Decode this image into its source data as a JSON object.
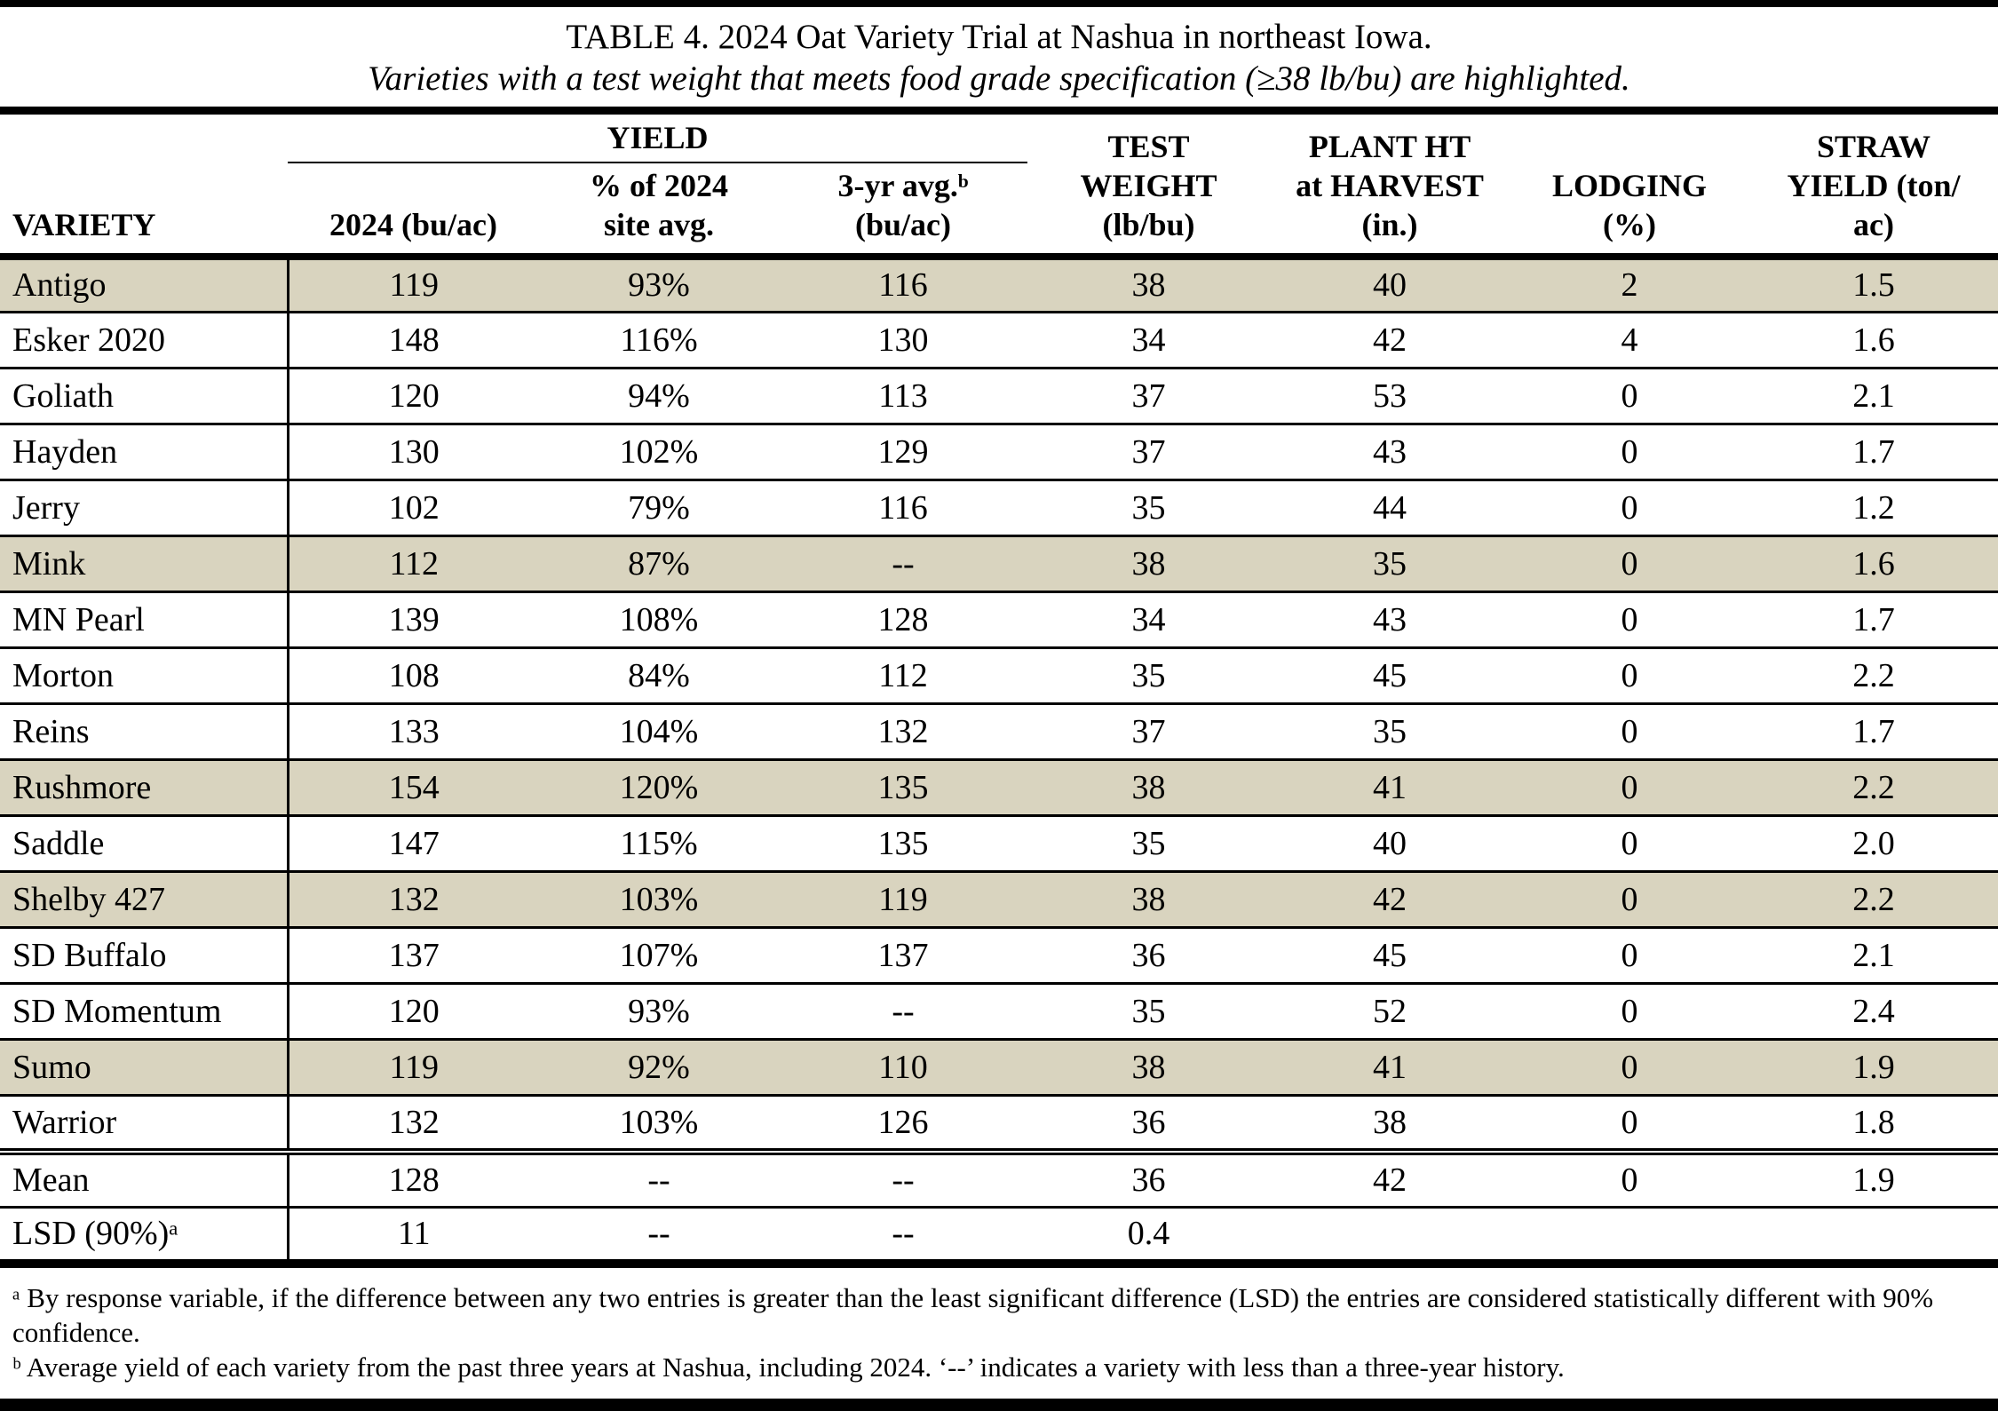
{
  "title": "TABLE 4. 2024 Oat Variety Trial at Nashua in northeast Iowa.",
  "subtitle": "Varieties with a test weight that meets food grade specification (≥38 lb/bu) are highlighted.",
  "highlight_color": "#d9d4bf",
  "highlight_meaning": "test weight meets food grade specification (≥38 lb/bu)",
  "columns": {
    "variety": "VARIETY",
    "yield_group": "YIELD",
    "y2024": "2024 (bu/ac)",
    "pct": "% of 2024\nsite avg.",
    "avg3": "3-yr avg.ᵇ\n(bu/ac)",
    "tw": "TEST\nWEIGHT\n(lb/bu)",
    "ht": "PLANT HT\nat HARVEST\n(in.)",
    "ldg": "LODGING\n(%)",
    "straw": "STRAW\nYIELD (ton/\nac)"
  },
  "rows": [
    {
      "variety": "Antigo",
      "y2024": "119",
      "pct": "93%",
      "avg3": "116",
      "tw": "38",
      "ht": "40",
      "ldg": "2",
      "straw": "1.5",
      "highlight": true
    },
    {
      "variety": "Esker 2020",
      "y2024": "148",
      "pct": "116%",
      "avg3": "130",
      "tw": "34",
      "ht": "42",
      "ldg": "4",
      "straw": "1.6",
      "highlight": false
    },
    {
      "variety": "Goliath",
      "y2024": "120",
      "pct": "94%",
      "avg3": "113",
      "tw": "37",
      "ht": "53",
      "ldg": "0",
      "straw": "2.1",
      "highlight": false
    },
    {
      "variety": "Hayden",
      "y2024": "130",
      "pct": "102%",
      "avg3": "129",
      "tw": "37",
      "ht": "43",
      "ldg": "0",
      "straw": "1.7",
      "highlight": false
    },
    {
      "variety": "Jerry",
      "y2024": "102",
      "pct": "79%",
      "avg3": "116",
      "tw": "35",
      "ht": "44",
      "ldg": "0",
      "straw": "1.2",
      "highlight": false
    },
    {
      "variety": "Mink",
      "y2024": "112",
      "pct": "87%",
      "avg3": "--",
      "tw": "38",
      "ht": "35",
      "ldg": "0",
      "straw": "1.6",
      "highlight": true
    },
    {
      "variety": "MN Pearl",
      "y2024": "139",
      "pct": "108%",
      "avg3": "128",
      "tw": "34",
      "ht": "43",
      "ldg": "0",
      "straw": "1.7",
      "highlight": false
    },
    {
      "variety": "Morton",
      "y2024": "108",
      "pct": "84%",
      "avg3": "112",
      "tw": "35",
      "ht": "45",
      "ldg": "0",
      "straw": "2.2",
      "highlight": false
    },
    {
      "variety": "Reins",
      "y2024": "133",
      "pct": "104%",
      "avg3": "132",
      "tw": "37",
      "ht": "35",
      "ldg": "0",
      "straw": "1.7",
      "highlight": false
    },
    {
      "variety": "Rushmore",
      "y2024": "154",
      "pct": "120%",
      "avg3": "135",
      "tw": "38",
      "ht": "41",
      "ldg": "0",
      "straw": "2.2",
      "highlight": true
    },
    {
      "variety": "Saddle",
      "y2024": "147",
      "pct": "115%",
      "avg3": "135",
      "tw": "35",
      "ht": "40",
      "ldg": "0",
      "straw": "2.0",
      "highlight": false
    },
    {
      "variety": "Shelby 427",
      "y2024": "132",
      "pct": "103%",
      "avg3": "119",
      "tw": "38",
      "ht": "42",
      "ldg": "0",
      "straw": "2.2",
      "highlight": true
    },
    {
      "variety": "SD Buffalo",
      "y2024": "137",
      "pct": "107%",
      "avg3": "137",
      "tw": "36",
      "ht": "45",
      "ldg": "0",
      "straw": "2.1",
      "highlight": false
    },
    {
      "variety": "SD Momentum",
      "y2024": "120",
      "pct": "93%",
      "avg3": "--",
      "tw": "35",
      "ht": "52",
      "ldg": "0",
      "straw": "2.4",
      "highlight": false
    },
    {
      "variety": "Sumo",
      "y2024": "119",
      "pct": "92%",
      "avg3": "110",
      "tw": "38",
      "ht": "41",
      "ldg": "0",
      "straw": "1.9",
      "highlight": true
    },
    {
      "variety": "Warrior",
      "y2024": "132",
      "pct": "103%",
      "avg3": "126",
      "tw": "36",
      "ht": "38",
      "ldg": "0",
      "straw": "1.8",
      "highlight": false
    },
    {
      "variety": "Mean",
      "y2024": "128",
      "pct": "--",
      "avg3": "--",
      "tw": "36",
      "ht": "42",
      "ldg": "0",
      "straw": "1.9",
      "highlight": false
    },
    {
      "variety": "LSD (90%)ᵃ",
      "y2024": "11",
      "pct": "--",
      "avg3": "--",
      "tw": "0.4",
      "ht": "",
      "ldg": "",
      "straw": "",
      "highlight": false
    }
  ],
  "footnotes": {
    "a": "ᵃ By response variable, if the difference between any two entries is greater than the least significant difference (LSD) the entries are considered statistically different with 90% confidence.",
    "b": "ᵇ Average yield of each variety from the past three years at Nashua, including 2024. ‘--’ indicates a variety with less than a three-year history."
  }
}
